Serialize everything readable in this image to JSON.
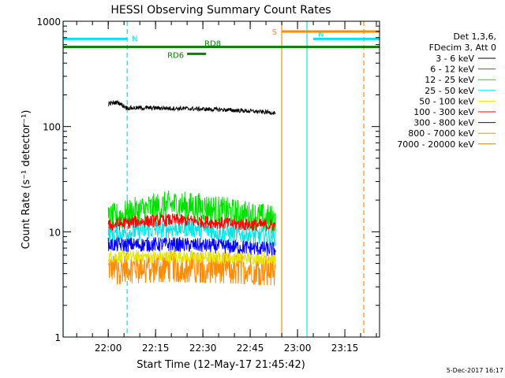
{
  "chart_data": {
    "type": "line",
    "title": "HESSI Observing Summary Count Rates",
    "xlabel": "Start Time (12-May-17 21:45:42)",
    "ylabel": "Count Rate (s⁻¹ detector⁻¹)",
    "y_scale": "log",
    "ylim": [
      1,
      1000
    ],
    "y_ticks": [
      {
        "value": 1,
        "label": "1"
      },
      {
        "value": 10,
        "label": "10"
      },
      {
        "value": 100,
        "label": "100"
      },
      {
        "value": 1000,
        "label": "1000"
      }
    ],
    "x_range": [
      "21:45:42",
      "23:26"
    ],
    "x_ticks": [
      {
        "time": "22:00",
        "label": "22:00"
      },
      {
        "time": "22:15",
        "label": "22:15"
      },
      {
        "time": "22:30",
        "label": "22:30"
      },
      {
        "time": "22:45",
        "label": "22:45"
      },
      {
        "time": "23:00",
        "label": "23:00"
      },
      {
        "time": "23:15",
        "label": "23:15"
      }
    ],
    "legend": {
      "position": "right",
      "header": [
        "Det 1,3,6,",
        "FDecim 3, Att 0"
      ],
      "entries": [
        {
          "label": "3 - 6 keV",
          "color": "#000000"
        },
        {
          "label": "6 - 12 keV",
          "color": "#e000e0"
        },
        {
          "label": "12 - 25 keV",
          "color": "#00e000"
        },
        {
          "label": "25 - 50 keV",
          "color": "#00e6e6"
        },
        {
          "label": "50 - 100 keV",
          "color": "#e6e600"
        },
        {
          "label": "100 - 300 keV",
          "color": "#ff0000"
        },
        {
          "label": "300 - 800 keV",
          "color": "#0000ff"
        },
        {
          "label": "800 - 7000 keV",
          "color": "#ff8c00"
        },
        {
          "label": "7000 - 20000 keV",
          "color": "#b8860b"
        }
      ]
    },
    "series": [
      {
        "name": "3 - 6 keV",
        "color": "#000000",
        "start": "22:00",
        "end": "22:53",
        "points": [
          [
            "22:00",
            165
          ],
          [
            "22:03",
            170
          ],
          [
            "22:06",
            150
          ],
          [
            "22:15",
            150
          ],
          [
            "22:25",
            148
          ],
          [
            "22:35",
            145
          ],
          [
            "22:45",
            140
          ],
          [
            "22:53",
            135
          ]
        ]
      },
      {
        "name": "12 - 25 keV",
        "color": "#00e000",
        "start": "22:00",
        "end": "22:53",
        "points": [
          [
            "22:00",
            13
          ],
          [
            "22:10",
            16
          ],
          [
            "22:20",
            18
          ],
          [
            "22:30",
            17
          ],
          [
            "22:40",
            15
          ],
          [
            "22:53",
            13
          ]
        ]
      },
      {
        "name": "25 - 50 keV",
        "color": "#00e6e6",
        "start": "22:00",
        "end": "22:53",
        "points": [
          [
            "22:00",
            9.5
          ],
          [
            "22:15",
            10.5
          ],
          [
            "22:25",
            11
          ],
          [
            "22:40",
            9.5
          ],
          [
            "22:53",
            9
          ]
        ]
      },
      {
        "name": "50 - 100 keV",
        "color": "#e6e600",
        "start": "22:00",
        "end": "22:53",
        "points": [
          [
            "22:00",
            5.8
          ],
          [
            "22:20",
            5.8
          ],
          [
            "22:53",
            5.6
          ]
        ]
      },
      {
        "name": "100 - 300 keV",
        "color": "#ff0000",
        "start": "22:00",
        "end": "22:53",
        "points": [
          [
            "22:00",
            11.5
          ],
          [
            "22:10",
            12.5
          ],
          [
            "22:20",
            13
          ],
          [
            "22:30",
            12.5
          ],
          [
            "22:40",
            11.8
          ],
          [
            "22:53",
            11.5
          ]
        ]
      },
      {
        "name": "300 - 800 keV",
        "color": "#0000ff",
        "start": "22:00",
        "end": "22:53",
        "points": [
          [
            "22:00",
            7.5
          ],
          [
            "22:20",
            7.6
          ],
          [
            "22:40",
            7.2
          ],
          [
            "22:53",
            6.8
          ]
        ]
      },
      {
        "name": "800 - 7000 keV",
        "color": "#ff8c00",
        "start": "22:00",
        "end": "22:53",
        "points": [
          [
            "22:00",
            4.5
          ],
          [
            "22:20",
            4.8
          ],
          [
            "22:40",
            4.6
          ],
          [
            "22:53",
            4.4
          ]
        ]
      }
    ],
    "annotations": [
      {
        "label": "N",
        "color": "#00e6e6",
        "bar_from": "21:45:42",
        "bar_to": "22:06",
        "level": 680
      },
      {
        "label": "N",
        "color": "#00e6e6",
        "bar_from": "23:05",
        "bar_to": "23:26",
        "level": 680
      },
      {
        "label": "S",
        "color": "#ff8c00",
        "bar_from": "22:55",
        "bar_to": "23:26",
        "level": 800
      },
      {
        "label": "RD8",
        "color": "#008000",
        "bar_from": "21:45:42",
        "bar_to": "23:26",
        "level": 570
      },
      {
        "label": "RD6",
        "color": "#008000",
        "bar_from": "22:25",
        "bar_to": "22:31",
        "level": 490
      }
    ],
    "vertical_lines": [
      {
        "time": "21:45:42",
        "color": "#00e6e6",
        "style": "solid"
      },
      {
        "time": "22:06",
        "color": "#00e6e6",
        "style": "dashed"
      },
      {
        "time": "22:55",
        "color": "#ff8c00",
        "style": "solid"
      },
      {
        "time": "23:03",
        "color": "#00e6e6",
        "style": "solid"
      },
      {
        "time": "23:21",
        "color": "#ff8c00",
        "style": "dashed"
      }
    ]
  },
  "footer": {
    "date": "5-Dec-2017 16:17"
  }
}
